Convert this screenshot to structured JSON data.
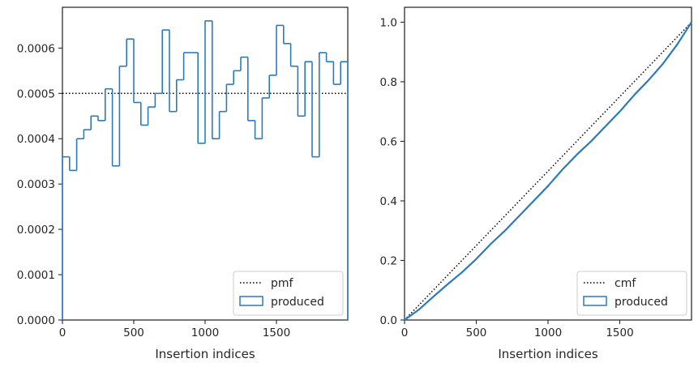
{
  "chart_data": [
    {
      "type": "histogram",
      "xlabel": "Insertion indices",
      "ylabel": "",
      "xlim": [
        0,
        2000
      ],
      "ylim": [
        0,
        0.00069
      ],
      "xticks": [
        0,
        500,
        1000,
        1500
      ],
      "yticks": [
        0,
        0.0001,
        0.0002,
        0.0003,
        0.0004,
        0.0005,
        0.0006
      ],
      "ytick_labels": [
        "0.0000",
        "0.0001",
        "0.0002",
        "0.0003",
        "0.0004",
        "0.0005",
        "0.0006"
      ],
      "grid": false,
      "legend_position": "lower-right",
      "reference": {
        "name": "pmf",
        "style": "dotted",
        "value": 0.0005
      },
      "series": [
        {
          "name": "produced",
          "bin_width": 50,
          "bin_edges_start": 0,
          "values": [
            0.00036,
            0.00033,
            0.0004,
            0.00042,
            0.00045,
            0.00044,
            0.00051,
            0.00034,
            0.00056,
            0.00062,
            0.00048,
            0.00043,
            0.00047,
            0.0005,
            0.00064,
            0.00046,
            0.00053,
            0.00059,
            0.00059,
            0.00039,
            0.00066,
            0.0004,
            0.00046,
            0.00052,
            0.00055,
            0.00058,
            0.00044,
            0.0004,
            0.00049,
            0.00054,
            0.00065,
            0.00061,
            0.00056,
            0.00045,
            0.00057,
            0.00036,
            0.00059,
            0.00057,
            0.00052,
            0.00057
          ]
        }
      ],
      "colors": {
        "series": "#2b7bba",
        "reference": "#000000"
      }
    },
    {
      "type": "line",
      "xlabel": "Insertion indices",
      "ylabel": "",
      "xlim": [
        0,
        2000
      ],
      "ylim": [
        0,
        1.05
      ],
      "xticks": [
        0,
        500,
        1000,
        1500
      ],
      "yticks": [
        0,
        0.2,
        0.4,
        0.6,
        0.8,
        1.0
      ],
      "ytick_labels": [
        "0.0",
        "0.2",
        "0.4",
        "0.6",
        "0.8",
        "1.0"
      ],
      "grid": false,
      "legend_position": "lower-right",
      "reference": {
        "name": "cmf",
        "style": "dotted",
        "points": [
          [
            0,
            0
          ],
          [
            2000,
            1.0
          ]
        ]
      },
      "series": [
        {
          "name": "produced",
          "x": [
            0,
            100,
            200,
            300,
            400,
            500,
            600,
            700,
            800,
            900,
            1000,
            1100,
            1200,
            1300,
            1400,
            1500,
            1600,
            1700,
            1800,
            1900,
            2000
          ],
          "y": [
            0,
            0.035,
            0.078,
            0.12,
            0.16,
            0.205,
            0.255,
            0.3,
            0.35,
            0.4,
            0.45,
            0.505,
            0.555,
            0.6,
            0.65,
            0.7,
            0.755,
            0.805,
            0.86,
            0.925,
            1.0
          ]
        }
      ],
      "colors": {
        "series": "#2b7bba",
        "reference": "#000000"
      }
    }
  ]
}
